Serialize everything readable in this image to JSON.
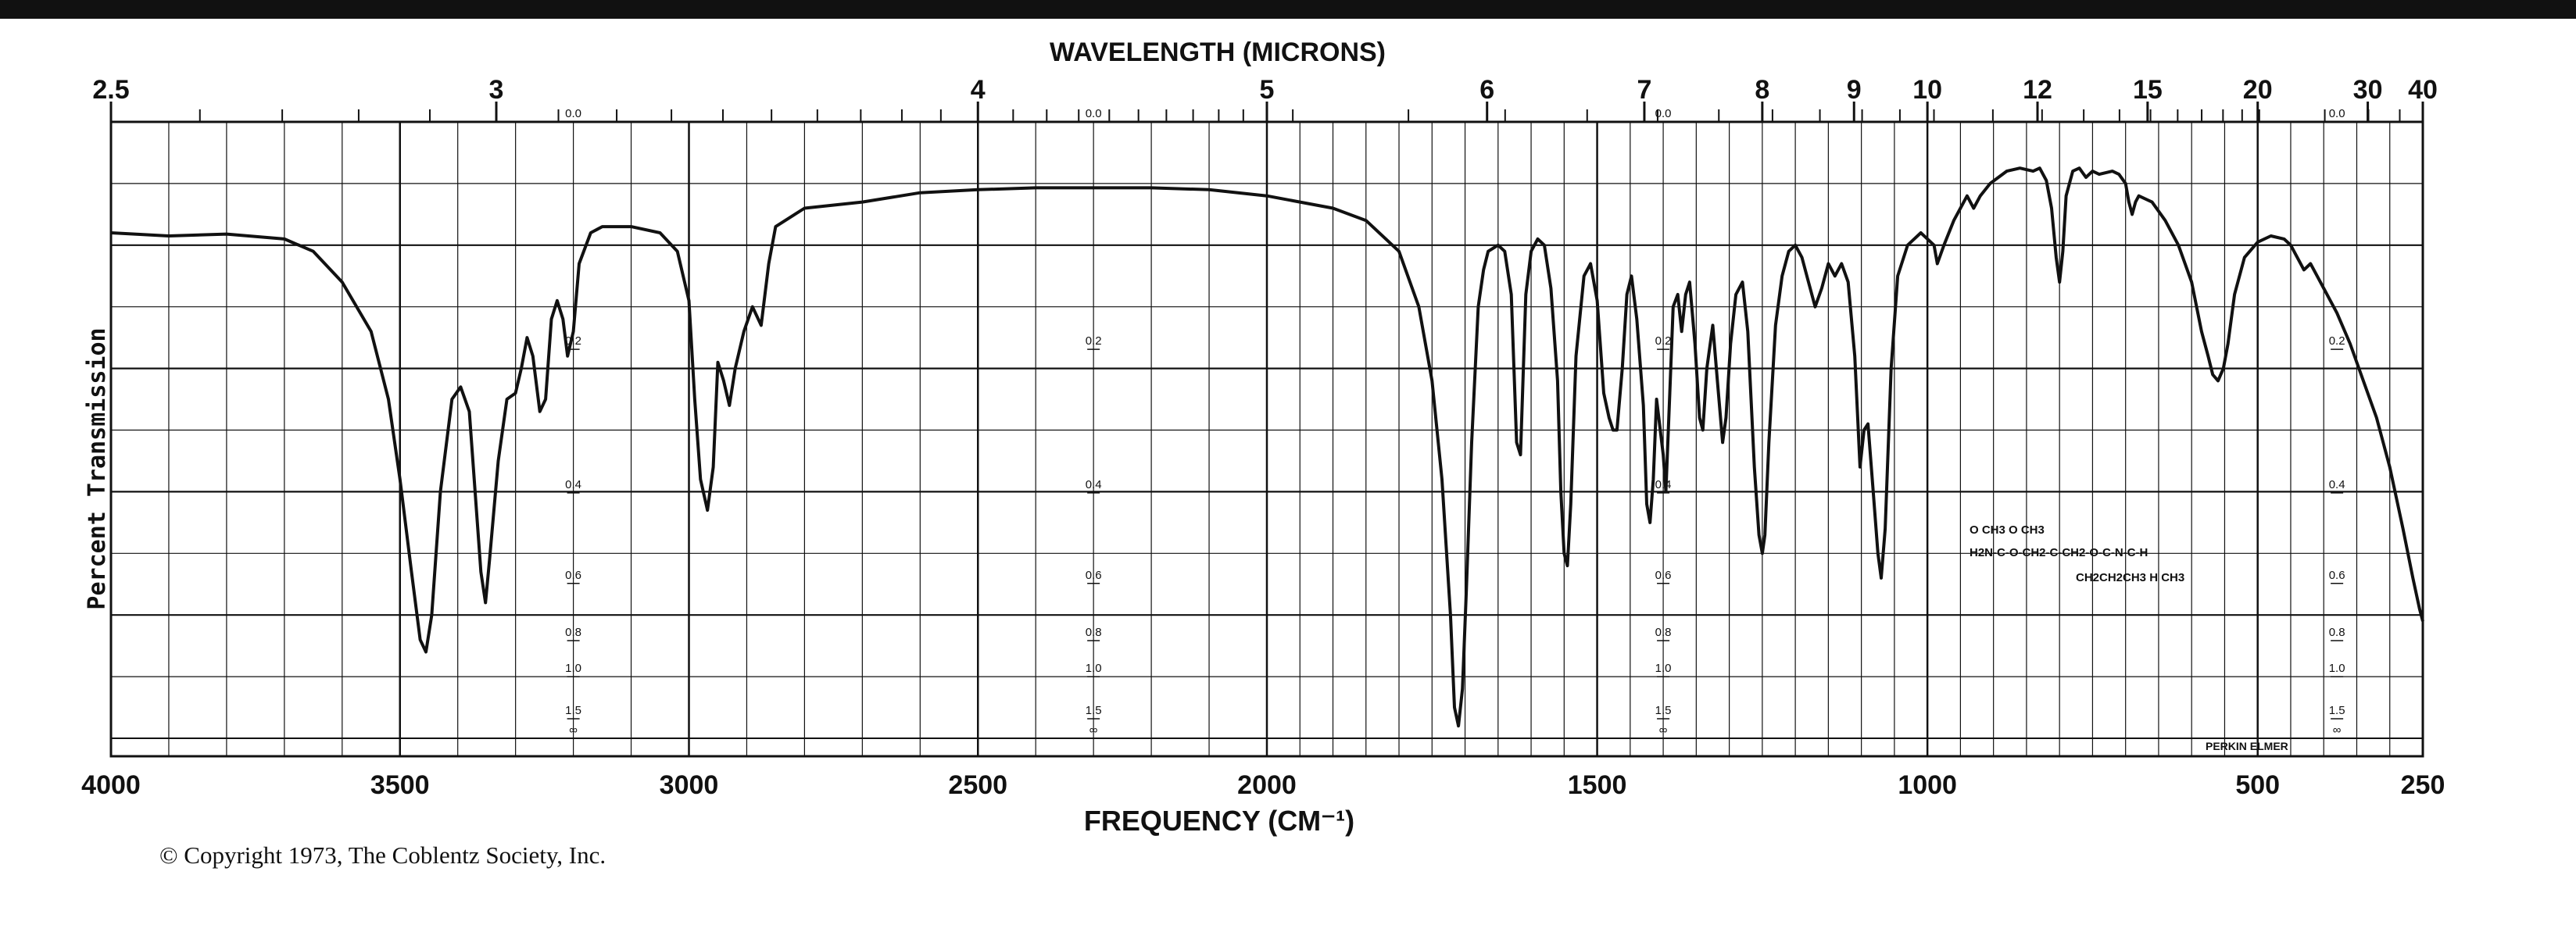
{
  "page": {
    "copyright": "© Copyright 1973, The Coblentz Society, Inc.",
    "brand": "PERKIN ELMER",
    "structure_lines": [
      "O          CH3       O       CH3",
      "H2N-C-O-CH2-C-CH2-O-C-N-C-H",
      "CH2CH2CH3        H   CH3"
    ]
  },
  "chart_data": {
    "type": "line",
    "title": "",
    "xlabel": "FREQUENCY (CM⁻¹)",
    "x2label": "WAVELENGTH (MICRONS)",
    "ylabel": "Percent Transmission",
    "xlim": [
      4000,
      250
    ],
    "ylim": [
      0,
      100
    ],
    "grid": true,
    "x_ticks_bottom": [
      {
        "value": 4000,
        "label": "4000"
      },
      {
        "value": 3500,
        "label": "3500"
      },
      {
        "value": 3000,
        "label": "3000"
      },
      {
        "value": 2500,
        "label": "2500"
      },
      {
        "value": 2000,
        "label": "2000"
      },
      {
        "value": 1500,
        "label": "1500"
      },
      {
        "value": 1000,
        "label": "1000"
      },
      {
        "value": 500,
        "label": "500"
      },
      {
        "value": 250,
        "label": "250"
      }
    ],
    "x_ticks_top": [
      {
        "micron": 2.5,
        "label": "2.5"
      },
      {
        "micron": 3,
        "label": "3"
      },
      {
        "micron": 4,
        "label": "4"
      },
      {
        "micron": 5,
        "label": "5"
      },
      {
        "micron": 6,
        "label": "6"
      },
      {
        "micron": 7,
        "label": "7"
      },
      {
        "micron": 8,
        "label": "8"
      },
      {
        "micron": 9,
        "label": "9"
      },
      {
        "micron": 10,
        "label": "10"
      },
      {
        "micron": 12,
        "label": "12"
      },
      {
        "micron": 15,
        "label": "15"
      },
      {
        "micron": 20,
        "label": "20"
      },
      {
        "micron": 30,
        "label": "30"
      },
      {
        "micron": 40,
        "label": "40"
      }
    ],
    "absorbance_scale": [
      {
        "value": 0.0,
        "label": "0.0"
      },
      {
        "value": 0.2,
        "label": "0.2"
      },
      {
        "value": 0.4,
        "label": "0.4"
      },
      {
        "value": 0.6,
        "label": "0.6"
      },
      {
        "value": 0.8,
        "label": "0.8"
      },
      {
        "value": 1.0,
        "label": "1.0"
      },
      {
        "value": 1.5,
        "label": "1.5"
      },
      {
        "value": "inf",
        "label": "∞"
      }
    ],
    "absorbance_scale_x": [
      3200,
      2300,
      1400,
      380
    ],
    "series": [
      {
        "points": [
          [
            4000,
            82
          ],
          [
            3900,
            81.5
          ],
          [
            3800,
            81.8
          ],
          [
            3700,
            81
          ],
          [
            3650,
            79
          ],
          [
            3600,
            74
          ],
          [
            3550,
            66
          ],
          [
            3520,
            55
          ],
          [
            3500,
            42
          ],
          [
            3480,
            27
          ],
          [
            3465,
            16
          ],
          [
            3455,
            14
          ],
          [
            3445,
            20
          ],
          [
            3430,
            40
          ],
          [
            3410,
            55
          ],
          [
            3395,
            57
          ],
          [
            3380,
            53
          ],
          [
            3370,
            40
          ],
          [
            3360,
            27
          ],
          [
            3352,
            22
          ],
          [
            3345,
            29
          ],
          [
            3330,
            45
          ],
          [
            3315,
            55
          ],
          [
            3300,
            56
          ],
          [
            3290,
            60
          ],
          [
            3280,
            65
          ],
          [
            3270,
            62
          ],
          [
            3258,
            53
          ],
          [
            3248,
            55
          ],
          [
            3238,
            68
          ],
          [
            3228,
            71
          ],
          [
            3218,
            68
          ],
          [
            3210,
            62
          ],
          [
            3200,
            66
          ],
          [
            3190,
            77
          ],
          [
            3170,
            82
          ],
          [
            3150,
            83
          ],
          [
            3100,
            83
          ],
          [
            3050,
            82
          ],
          [
            3020,
            79
          ],
          [
            3000,
            71
          ],
          [
            2990,
            55
          ],
          [
            2980,
            42
          ],
          [
            2968,
            37
          ],
          [
            2958,
            44
          ],
          [
            2950,
            61
          ],
          [
            2940,
            58
          ],
          [
            2930,
            54
          ],
          [
            2920,
            60
          ],
          [
            2905,
            66
          ],
          [
            2890,
            70
          ],
          [
            2875,
            67
          ],
          [
            2862,
            77
          ],
          [
            2850,
            83
          ],
          [
            2800,
            86
          ],
          [
            2700,
            87
          ],
          [
            2600,
            88.5
          ],
          [
            2500,
            89
          ],
          [
            2400,
            89.3
          ],
          [
            2300,
            89.3
          ],
          [
            2200,
            89.3
          ],
          [
            2100,
            89
          ],
          [
            2000,
            88
          ],
          [
            1950,
            87
          ],
          [
            1900,
            86
          ],
          [
            1850,
            84
          ],
          [
            1800,
            79
          ],
          [
            1770,
            70
          ],
          [
            1750,
            58
          ],
          [
            1735,
            42
          ],
          [
            1722,
            20
          ],
          [
            1716,
            5
          ],
          [
            1710,
            2
          ],
          [
            1704,
            8
          ],
          [
            1698,
            24
          ],
          [
            1690,
            48
          ],
          [
            1680,
            70
          ],
          [
            1672,
            76
          ],
          [
            1665,
            79
          ],
          [
            1650,
            80
          ],
          [
            1640,
            79
          ],
          [
            1630,
            72
          ],
          [
            1622,
            48
          ],
          [
            1616,
            46
          ],
          [
            1608,
            72
          ],
          [
            1600,
            79
          ],
          [
            1590,
            81
          ],
          [
            1580,
            80
          ],
          [
            1570,
            73
          ],
          [
            1560,
            58
          ],
          [
            1555,
            40
          ],
          [
            1550,
            30
          ],
          [
            1545,
            28
          ],
          [
            1540,
            38
          ],
          [
            1532,
            62
          ],
          [
            1520,
            75
          ],
          [
            1510,
            77
          ],
          [
            1500,
            71
          ],
          [
            1490,
            56
          ],
          [
            1482,
            52
          ],
          [
            1476,
            50
          ],
          [
            1470,
            50
          ],
          [
            1462,
            60
          ],
          [
            1455,
            72
          ],
          [
            1448,
            75
          ],
          [
            1440,
            68
          ],
          [
            1430,
            54
          ],
          [
            1425,
            38
          ],
          [
            1420,
            35
          ],
          [
            1415,
            42
          ],
          [
            1410,
            55
          ],
          [
            1400,
            46
          ],
          [
            1396,
            40
          ],
          [
            1390,
            56
          ],
          [
            1385,
            70
          ],
          [
            1378,
            72
          ],
          [
            1372,
            66
          ],
          [
            1366,
            72
          ],
          [
            1360,
            74
          ],
          [
            1352,
            64
          ],
          [
            1345,
            52
          ],
          [
            1340,
            50
          ],
          [
            1334,
            60
          ],
          [
            1325,
            67
          ],
          [
            1318,
            58
          ],
          [
            1310,
            48
          ],
          [
            1305,
            52
          ],
          [
            1298,
            64
          ],
          [
            1290,
            72
          ],
          [
            1280,
            74
          ],
          [
            1272,
            66
          ],
          [
            1262,
            44
          ],
          [
            1255,
            33
          ],
          [
            1250,
            30
          ],
          [
            1246,
            33
          ],
          [
            1240,
            48
          ],
          [
            1230,
            67
          ],
          [
            1220,
            75
          ],
          [
            1210,
            79
          ],
          [
            1200,
            80
          ],
          [
            1190,
            78
          ],
          [
            1180,
            74
          ],
          [
            1170,
            70
          ],
          [
            1160,
            73
          ],
          [
            1150,
            77
          ],
          [
            1140,
            75
          ],
          [
            1130,
            77
          ],
          [
            1120,
            74
          ],
          [
            1110,
            62
          ],
          [
            1102,
            44
          ],
          [
            1096,
            50
          ],
          [
            1090,
            51
          ],
          [
            1082,
            40
          ],
          [
            1075,
            30
          ],
          [
            1070,
            26
          ],
          [
            1064,
            34
          ],
          [
            1055,
            60
          ],
          [
            1045,
            75
          ],
          [
            1030,
            80
          ],
          [
            1010,
            82
          ],
          [
            990,
            80
          ],
          [
            985,
            77
          ],
          [
            975,
            80
          ],
          [
            960,
            84
          ],
          [
            950,
            86
          ],
          [
            940,
            88
          ],
          [
            930,
            86
          ],
          [
            920,
            88
          ],
          [
            905,
            90
          ],
          [
            880,
            92
          ],
          [
            860,
            92.5
          ],
          [
            840,
            92
          ],
          [
            830,
            92.5
          ],
          [
            820,
            90.5
          ],
          [
            812,
            86
          ],
          [
            805,
            78
          ],
          [
            800,
            74
          ],
          [
            795,
            79
          ],
          [
            790,
            88
          ],
          [
            780,
            92
          ],
          [
            770,
            92.5
          ],
          [
            760,
            91
          ],
          [
            750,
            92
          ],
          [
            740,
            91.5
          ],
          [
            720,
            92
          ],
          [
            710,
            91.5
          ],
          [
            700,
            90
          ],
          [
            695,
            87
          ],
          [
            690,
            85
          ],
          [
            685,
            87
          ],
          [
            680,
            88
          ],
          [
            660,
            87
          ],
          [
            640,
            84
          ],
          [
            620,
            80
          ],
          [
            600,
            74
          ],
          [
            585,
            66
          ],
          [
            575,
            62
          ],
          [
            568,
            59
          ],
          [
            560,
            58
          ],
          [
            552,
            60
          ],
          [
            545,
            64
          ],
          [
            535,
            72
          ],
          [
            520,
            78
          ],
          [
            500,
            80.5
          ],
          [
            480,
            81.5
          ],
          [
            460,
            81
          ],
          [
            450,
            80
          ],
          [
            440,
            78
          ],
          [
            430,
            76
          ],
          [
            420,
            77
          ],
          [
            410,
            75
          ],
          [
            400,
            73
          ],
          [
            380,
            69
          ],
          [
            360,
            64
          ],
          [
            340,
            58
          ],
          [
            320,
            52
          ],
          [
            300,
            44
          ],
          [
            280,
            34
          ],
          [
            265,
            26
          ],
          [
            255,
            21
          ],
          [
            250,
            19
          ]
        ]
      }
    ]
  }
}
